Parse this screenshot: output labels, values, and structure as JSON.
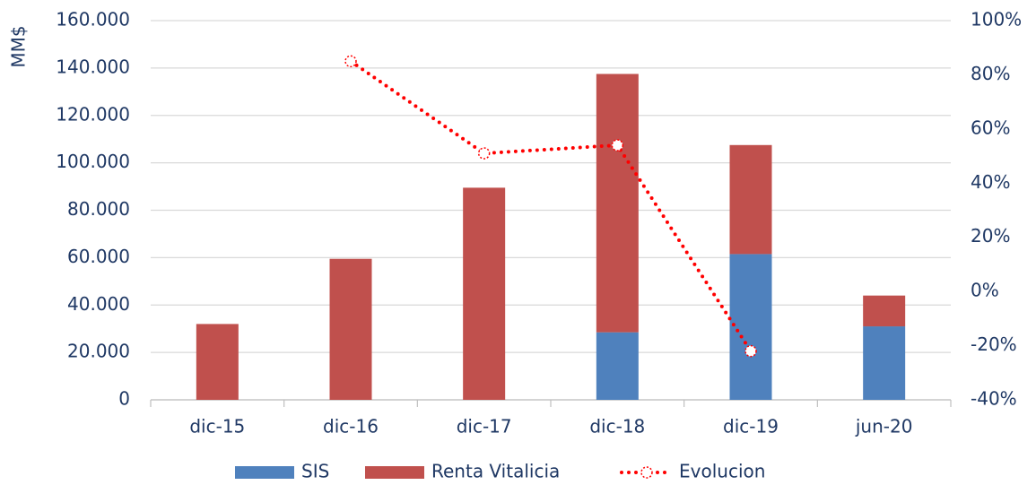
{
  "chart_data": {
    "type": "bar-line",
    "y_label": "MM$",
    "categories": [
      "dic-15",
      "dic-16",
      "dic-17",
      "dic-18",
      "dic-19",
      "jun-20"
    ],
    "series": [
      {
        "name": "SIS",
        "color": "#4f81bd",
        "values": [
          0,
          0,
          0,
          28500,
          61500,
          31000
        ]
      },
      {
        "name": "Renta Vitalicia",
        "color": "#c0504d",
        "values": [
          32000,
          59500,
          89500,
          109000,
          46000,
          13000
        ]
      },
      {
        "name": "Evolucion",
        "color": "#ff0000",
        "axis": "y2",
        "type": "line",
        "values": [
          null,
          85,
          51,
          54,
          -22,
          null
        ]
      }
    ],
    "ylim": [
      0,
      160000
    ],
    "yticks": [
      0,
      {
        "value": 20000,
        "label": "20.000"
      },
      {
        "value": 40000,
        "label": "40.000"
      },
      {
        "value": 60000,
        "label": "60.000"
      },
      {
        "value": 80000,
        "label": "80.000"
      },
      {
        "value": 100000,
        "label": "100.000"
      },
      {
        "value": 120000,
        "label": "120.000"
      },
      {
        "value": 140000,
        "label": "140.000"
      },
      {
        "value": 160000,
        "label": "160.000"
      }
    ],
    "y2lim": [
      -40,
      100
    ],
    "y2ticks": [
      {
        "value": -40,
        "label": "-40%"
      },
      {
        "value": -20,
        "label": "-20%"
      },
      {
        "value": 0,
        "label": "0%"
      },
      {
        "value": 20,
        "label": "20%"
      },
      {
        "value": 40,
        "label": "40%"
      },
      {
        "value": 60,
        "label": "60%"
      },
      {
        "value": 80,
        "label": "80%"
      },
      {
        "value": 100,
        "label": "100%"
      }
    ],
    "grid": true,
    "legend": "bottom"
  }
}
